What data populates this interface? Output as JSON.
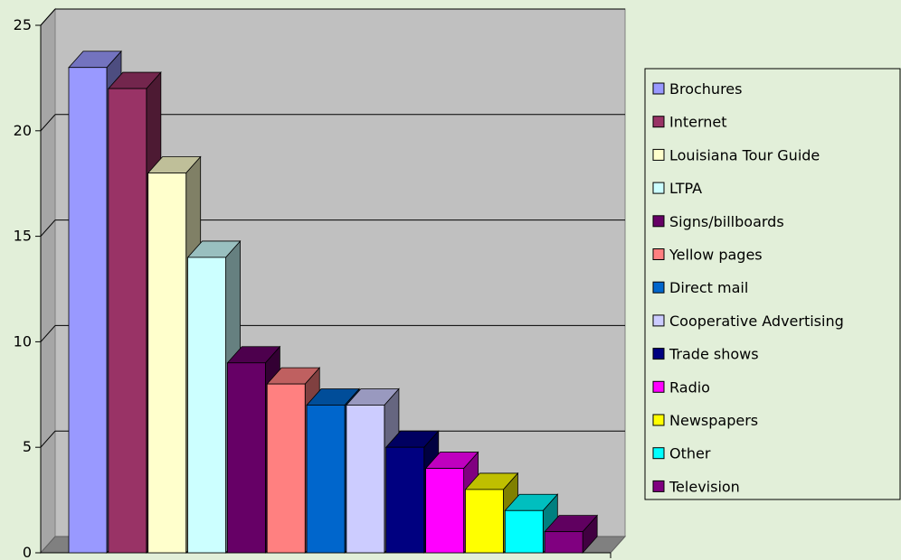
{
  "colors": {
    "background": "#e2efd9",
    "plot_wall": "#c0c0c0",
    "floor": "#808080",
    "gridline": "#000000"
  },
  "chart_data": {
    "type": "bar",
    "style": "3d-column",
    "title": "",
    "xlabel": "",
    "ylabel": "",
    "ylim": [
      0,
      25
    ],
    "yticks": [
      0,
      5,
      10,
      15,
      20,
      25
    ],
    "grid": true,
    "legend_position": "right",
    "categories": [
      "Brochures",
      "Internet",
      "Louisiana Tour Guide",
      "LTPA",
      "Signs/billboards",
      "Yellow pages",
      "Direct mail",
      "Cooperative Advertising",
      "Trade shows",
      "Radio",
      "Newspapers",
      "Other",
      "Television"
    ],
    "values": [
      23,
      22,
      18,
      14,
      9,
      8,
      7,
      7,
      5,
      4,
      3,
      2,
      1
    ],
    "colors": [
      "#9999ff",
      "#993366",
      "#ffffcc",
      "#ccffff",
      "#660066",
      "#ff8080",
      "#0066cc",
      "#ccccff",
      "#000080",
      "#ff00ff",
      "#ffff00",
      "#00ffff",
      "#800080"
    ]
  }
}
